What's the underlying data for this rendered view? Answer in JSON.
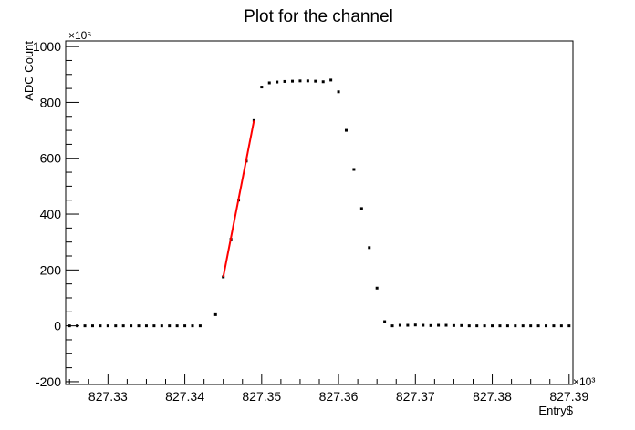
{
  "chart_data": {
    "type": "scatter",
    "title": "Plot for the channel",
    "xlabel": "Entry$",
    "ylabel": "ADC Count",
    "x_multiplier_label": "×10³",
    "y_multiplier_label": "×10⁶",
    "xlim": [
      827.3245,
      827.3905
    ],
    "ylim": [
      -210,
      1020
    ],
    "x_ticks": [
      827.33,
      827.34,
      827.35,
      827.36,
      827.37,
      827.38,
      827.39
    ],
    "x_tick_labels": [
      "827.33",
      "827.34",
      "827.35",
      "827.36",
      "827.37",
      "827.38",
      "827.39"
    ],
    "y_ticks": [
      -200,
      0,
      200,
      400,
      600,
      800,
      1000
    ],
    "y_tick_labels": [
      "-200",
      "0",
      "200",
      "400",
      "600",
      "800",
      "1000"
    ],
    "grid": false,
    "series": [
      {
        "type": "points",
        "color": "#000000",
        "x": [
          827.325,
          827.326,
          827.327,
          827.328,
          827.329,
          827.33,
          827.331,
          827.332,
          827.333,
          827.334,
          827.335,
          827.336,
          827.337,
          827.338,
          827.339,
          827.34,
          827.341,
          827.342,
          827.344,
          827.345,
          827.346,
          827.347,
          827.348,
          827.349,
          827.35,
          827.351,
          827.352,
          827.353,
          827.354,
          827.355,
          827.356,
          827.357,
          827.358,
          827.359,
          827.36,
          827.361,
          827.362,
          827.363,
          827.364,
          827.365,
          827.366,
          827.367,
          827.368,
          827.369,
          827.37,
          827.371,
          827.372,
          827.373,
          827.374,
          827.375,
          827.376,
          827.377,
          827.378,
          827.379,
          827.38,
          827.381,
          827.382,
          827.383,
          827.384,
          827.385,
          827.386,
          827.387,
          827.388,
          827.389,
          827.39
        ],
        "y": [
          0,
          0,
          0,
          0,
          0,
          0,
          0,
          0,
          0,
          0,
          0,
          0,
          0,
          0,
          0,
          0,
          0,
          0,
          40,
          175,
          310,
          450,
          590,
          735,
          855,
          870,
          873,
          875,
          876,
          877,
          877,
          876,
          874,
          880,
          838,
          700,
          560,
          420,
          280,
          135,
          15,
          0,
          2,
          2,
          3,
          2,
          1,
          2,
          2,
          1,
          1,
          0,
          0,
          0,
          0,
          0,
          0,
          0,
          0,
          0,
          0,
          0,
          0,
          0,
          0
        ]
      },
      {
        "type": "fit-line",
        "color": "#ff0000",
        "x": [
          827.345,
          827.349
        ],
        "y": [
          175,
          735
        ]
      }
    ]
  }
}
